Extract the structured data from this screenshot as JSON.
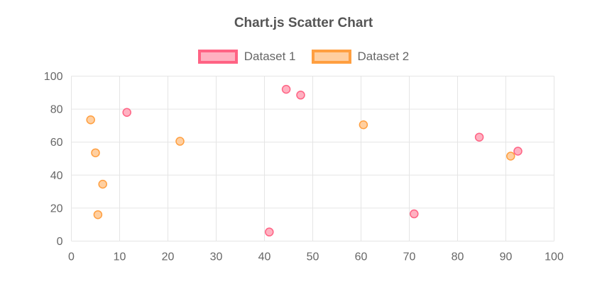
{
  "chart": {
    "title": "Chart.js Scatter Chart",
    "title_color": "#555555",
    "legend": [
      {
        "label": "Dataset 1",
        "border": "#ff6384",
        "fill": "#ffb1c1"
      },
      {
        "label": "Dataset 2",
        "border": "#ff9f40",
        "fill": "#ffcfa0"
      }
    ],
    "legend_label_color": "#666666"
  },
  "chart_data": {
    "type": "scatter",
    "title": "Chart.js Scatter Chart",
    "xlabel": "",
    "ylabel": "",
    "xlim": [
      0,
      100
    ],
    "ylim": [
      0,
      100
    ],
    "x_ticks": [
      0,
      10,
      20,
      30,
      40,
      50,
      60,
      70,
      80,
      90,
      100
    ],
    "y_ticks": [
      0,
      20,
      40,
      60,
      80,
      100
    ],
    "grid": true,
    "grid_color": "#e5e5e5",
    "tick_color": "#666666",
    "legend_position": "top",
    "point_radius": 5.5,
    "series": [
      {
        "name": "Dataset 1",
        "border_color": "#ff6384",
        "fill_color": "#ffb1c1",
        "points": [
          [
            11.5,
            78
          ],
          [
            41,
            5.5
          ],
          [
            44.5,
            92
          ],
          [
            47.5,
            88.5
          ],
          [
            71,
            16.5
          ],
          [
            84.5,
            63
          ],
          [
            92.5,
            54.5
          ]
        ]
      },
      {
        "name": "Dataset 2",
        "border_color": "#ff9f40",
        "fill_color": "#ffcfa0",
        "points": [
          [
            4,
            73.5
          ],
          [
            5,
            53.5
          ],
          [
            6.5,
            34.5
          ],
          [
            5.5,
            16
          ],
          [
            22.5,
            60.5
          ],
          [
            60.5,
            70.5
          ],
          [
            91,
            51.5
          ]
        ]
      }
    ]
  }
}
